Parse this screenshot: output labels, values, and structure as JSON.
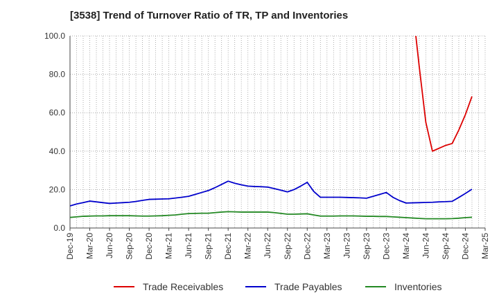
{
  "title": "[3538]  Trend of Turnover Ratio of TR, TP and Inventories",
  "chart_data": {
    "type": "line",
    "title": "[3538]  Trend of Turnover Ratio of TR, TP and Inventories",
    "xlabel": "",
    "ylabel": "",
    "ylim": [
      0,
      100
    ],
    "yticks": [
      "0.0",
      "20.0",
      "40.0",
      "60.0",
      "80.0",
      "100.0"
    ],
    "grid": true,
    "legend_position": "bottom",
    "x": [
      "Dec-19",
      "Jan-20",
      "Feb-20",
      "Mar-20",
      "Apr-20",
      "May-20",
      "Jun-20",
      "Jul-20",
      "Aug-20",
      "Sep-20",
      "Oct-20",
      "Nov-20",
      "Dec-20",
      "Jan-21",
      "Feb-21",
      "Mar-21",
      "Apr-21",
      "May-21",
      "Jun-21",
      "Jul-21",
      "Aug-21",
      "Sep-21",
      "Oct-21",
      "Nov-21",
      "Dec-21",
      "Jan-22",
      "Feb-22",
      "Mar-22",
      "Apr-22",
      "May-22",
      "Jun-22",
      "Jul-22",
      "Aug-22",
      "Sep-22",
      "Oct-22",
      "Nov-22",
      "Dec-22",
      "Jan-23",
      "Feb-23",
      "Mar-23",
      "Apr-23",
      "May-23",
      "Jun-23",
      "Jul-23",
      "Aug-23",
      "Sep-23",
      "Oct-23",
      "Nov-23",
      "Dec-23",
      "Jan-24",
      "Feb-24",
      "Mar-24",
      "Apr-24",
      "May-24",
      "Jun-24",
      "Jul-24",
      "Aug-24",
      "Sep-24",
      "Oct-24",
      "Nov-24",
      "Dec-24",
      "Jan-25",
      "Feb-25",
      "Mar-25"
    ],
    "x_tick_labels": [
      "Dec-19",
      "Mar-20",
      "Jun-20",
      "Sep-20",
      "Dec-20",
      "Mar-21",
      "Jun-21",
      "Sep-21",
      "Dec-21",
      "Mar-22",
      "Jun-22",
      "Sep-22",
      "Dec-22",
      "Mar-23",
      "Jun-23",
      "Sep-23",
      "Dec-23",
      "Mar-24",
      "Jun-24",
      "Sep-24",
      "Dec-24",
      "Mar-25"
    ],
    "series": [
      {
        "name": "Trade Receivables",
        "color": "#dd0000",
        "values": [
          null,
          null,
          null,
          null,
          null,
          null,
          null,
          null,
          null,
          null,
          null,
          null,
          null,
          null,
          null,
          null,
          null,
          null,
          null,
          null,
          null,
          null,
          null,
          null,
          null,
          null,
          null,
          null,
          null,
          null,
          null,
          null,
          null,
          null,
          null,
          null,
          null,
          null,
          null,
          null,
          null,
          null,
          null,
          null,
          null,
          null,
          null,
          null,
          null,
          null,
          null,
          null,
          115,
          84,
          55,
          40,
          41.5,
          43,
          44,
          51,
          59,
          68.5,
          null,
          null
        ]
      },
      {
        "name": "Trade Payables",
        "color": "#0000cc",
        "values": [
          11.5,
          12.5,
          13.2,
          14.0,
          13.6,
          13.2,
          12.8,
          13.0,
          13.2,
          13.4,
          13.8,
          14.4,
          14.9,
          15.0,
          15.1,
          15.2,
          15.6,
          16.0,
          16.5,
          17.5,
          18.5,
          19.5,
          21.0,
          22.7,
          24.4,
          23.3,
          22.5,
          21.8,
          21.6,
          21.5,
          21.3,
          20.5,
          19.7,
          18.8,
          20.0,
          21.8,
          23.8,
          19.0,
          16.0,
          16.0,
          16.0,
          16.0,
          15.9,
          15.8,
          15.7,
          15.5,
          16.5,
          17.5,
          18.5,
          16.0,
          14.3,
          13.0,
          13.1,
          13.2,
          13.3,
          13.4,
          13.6,
          13.7,
          13.9,
          15.9,
          18.0,
          20.2,
          null,
          null
        ]
      },
      {
        "name": "Inventories",
        "color": "#228822",
        "values": [
          5.5,
          5.8,
          6.1,
          6.2,
          6.3,
          6.3,
          6.4,
          6.4,
          6.4,
          6.4,
          6.3,
          6.2,
          6.2,
          6.3,
          6.4,
          6.6,
          6.8,
          7.2,
          7.5,
          7.6,
          7.7,
          7.7,
          8.0,
          8.3,
          8.5,
          8.4,
          8.3,
          8.3,
          8.3,
          8.3,
          8.3,
          8.0,
          7.6,
          7.2,
          7.2,
          7.3,
          7.4,
          6.8,
          6.2,
          6.2,
          6.2,
          6.3,
          6.3,
          6.3,
          6.2,
          6.1,
          6.1,
          6.0,
          6.0,
          5.8,
          5.6,
          5.4,
          5.2,
          5.0,
          4.8,
          4.8,
          4.8,
          4.8,
          4.9,
          5.1,
          5.4,
          5.6,
          null,
          null
        ]
      }
    ]
  }
}
